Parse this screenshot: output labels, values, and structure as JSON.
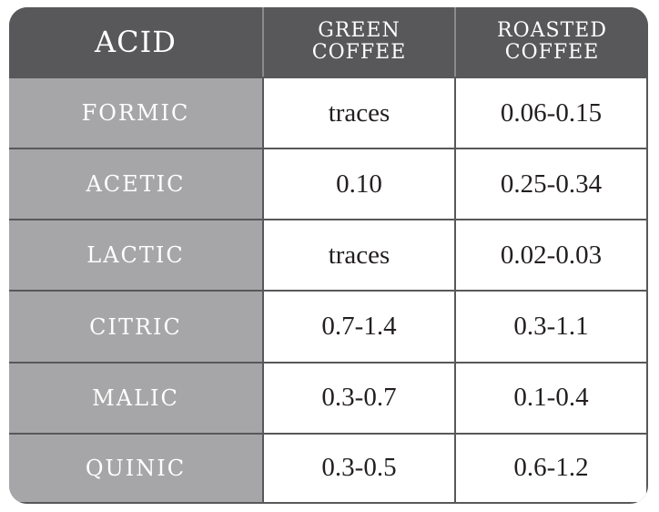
{
  "header": {
    "acid": "ACID",
    "green_line1": "GREEN",
    "green_line2": "COFFEE",
    "roasted_line1": "ROASTED",
    "roasted_line2": "COFFEE"
  },
  "rows": [
    {
      "acid": "FORMIC",
      "green": "traces",
      "roasted": "0.06-0.15"
    },
    {
      "acid": "ACETIC",
      "green": "0.10",
      "roasted": "0.25-0.34"
    },
    {
      "acid": "LACTIC",
      "green": "traces",
      "roasted": "0.02-0.03"
    },
    {
      "acid": "CITRIC",
      "green": "0.7-1.4",
      "roasted": "0.3-1.1"
    },
    {
      "acid": "MALIC",
      "green": "0.3-0.7",
      "roasted": "0.1-0.4"
    },
    {
      "acid": "QUINIC",
      "green": "0.3-0.5",
      "roasted": "0.6-1.2"
    }
  ],
  "colors": {
    "header_bg": "#58585a",
    "acid_column_bg": "#a6a6a8",
    "value_bg": "#ffffff",
    "value_text": "#231f20"
  }
}
